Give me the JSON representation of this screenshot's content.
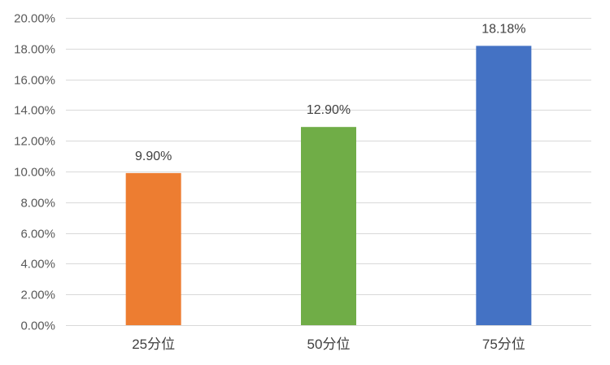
{
  "chart_data": {
    "type": "bar",
    "categories": [
      "25分位",
      "50分位",
      "75分位"
    ],
    "values": [
      9.9,
      12.9,
      18.18
    ],
    "data_labels": [
      "9.90%",
      "12.90%",
      "18.18%"
    ],
    "colors": [
      "#ED7D31",
      "#70AD47",
      "#4472C4"
    ],
    "ylim": [
      0,
      20
    ],
    "yticks": [
      0,
      2,
      4,
      6,
      8,
      10,
      12,
      14,
      16,
      18,
      20
    ],
    "ytick_labels": [
      "0.00%",
      "2.00%",
      "4.00%",
      "6.00%",
      "8.00%",
      "10.00%",
      "12.00%",
      "14.00%",
      "16.00%",
      "18.00%",
      "20.00%"
    ],
    "grid": true,
    "grid_color": "#D9D9D9",
    "legend": "none"
  }
}
